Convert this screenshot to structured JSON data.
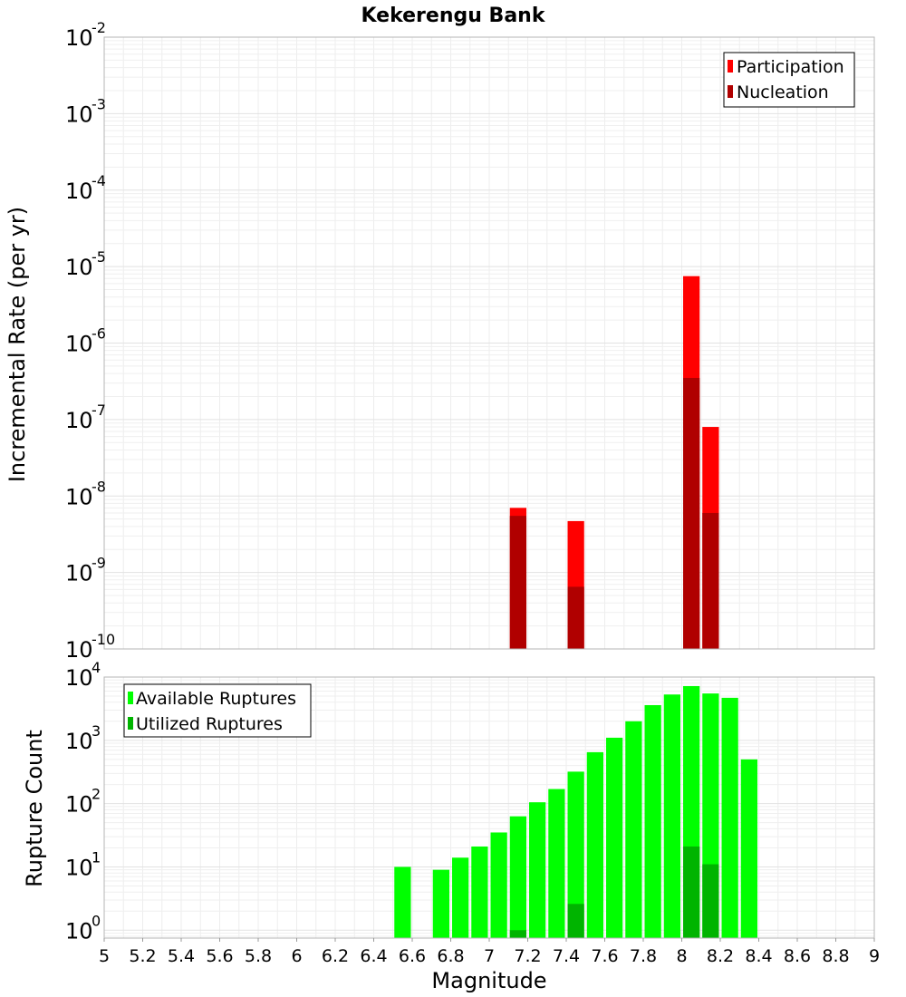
{
  "chart_data": [
    {
      "type": "bar",
      "title": "Kekerengu Bank",
      "xlabel": "",
      "ylabel": "Incremental Rate (per yr)",
      "xlim": [
        5,
        9
      ],
      "ylim": [
        1e-10,
        0.01
      ],
      "yscale": "log",
      "grid": true,
      "legend_position": "top-right",
      "series": [
        {
          "name": "Participation",
          "color": "#ff0000",
          "x": [
            7.15,
            7.45,
            8.05,
            8.15
          ],
          "values": [
            7e-09,
            4.7e-09,
            7.5e-06,
            8e-08
          ]
        },
        {
          "name": "Nucleation",
          "color": "#b00000",
          "x": [
            7.15,
            7.45,
            8.05,
            8.15
          ],
          "values": [
            5.5e-09,
            6.5e-10,
            3.5e-07,
            6e-09
          ]
        }
      ]
    },
    {
      "type": "bar",
      "xlabel": "Magnitude",
      "ylabel": "Rupture Count",
      "xlim": [
        5,
        9
      ],
      "ylim": [
        0.75,
        10000
      ],
      "yscale": "log",
      "grid": true,
      "legend_position": "top-left",
      "x_ticks": [
        "5",
        "5.2",
        "5.4",
        "5.6",
        "5.8",
        "6",
        "6.2",
        "6.4",
        "6.6",
        "6.8",
        "7",
        "7.2",
        "7.4",
        "7.6",
        "7.8",
        "8",
        "8.2",
        "8.4",
        "8.6",
        "8.8",
        "9"
      ],
      "series": [
        {
          "name": "Available Ruptures",
          "color": "#00ff00",
          "x": [
            6.55,
            6.75,
            6.85,
            6.95,
            7.05,
            7.15,
            7.25,
            7.35,
            7.45,
            7.55,
            7.65,
            7.75,
            7.85,
            7.95,
            8.05,
            8.15,
            8.25,
            8.35
          ],
          "values": [
            10,
            9,
            14,
            21,
            35,
            63,
            105,
            170,
            320,
            650,
            1100,
            2000,
            3600,
            5300,
            7200,
            5500,
            4700,
            500
          ]
        },
        {
          "name": "Utilized Ruptures",
          "color": "#00b400",
          "x": [
            7.15,
            7.45,
            8.05,
            8.15
          ],
          "values": [
            1,
            2.6,
            21,
            11
          ]
        }
      ]
    }
  ]
}
